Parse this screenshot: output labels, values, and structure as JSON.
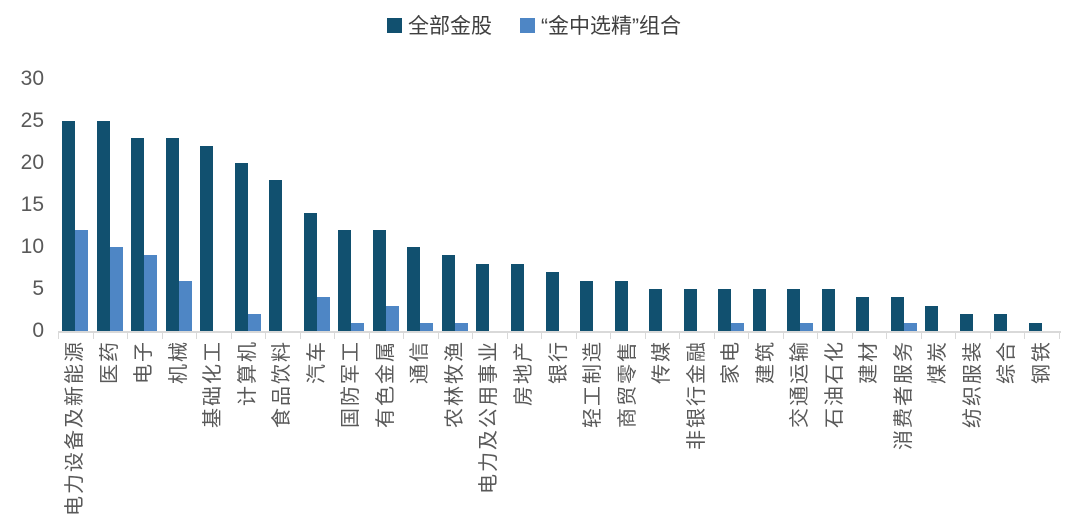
{
  "chart_data": {
    "type": "bar",
    "title": "",
    "xlabel": "",
    "ylabel": "",
    "categories": [
      "电力设备及新能源",
      "医药",
      "电子",
      "机械",
      "基础化工",
      "计算机",
      "食品饮料",
      "汽车",
      "国防军工",
      "有色金属",
      "通信",
      "农林牧渔",
      "电力及公用事业",
      "房地产",
      "银行",
      "轻工制造",
      "商贸零售",
      "传媒",
      "非银行金融",
      "家电",
      "建筑",
      "交通运输",
      "石油石化",
      "建材",
      "消费者服务",
      "煤炭",
      "纺织服装",
      "综合",
      "钢铁"
    ],
    "series": [
      {
        "name": "全部金股",
        "color": "#11506F",
        "values": [
          25,
          25,
          23,
          23,
          22,
          20,
          18,
          14,
          12,
          12,
          10,
          9,
          8,
          8,
          7,
          6,
          6,
          5,
          5,
          5,
          5,
          5,
          5,
          4,
          4,
          3,
          2,
          2,
          1
        ]
      },
      {
        "name": "“金中选精”组合",
        "color": "#4E86C5",
        "values": [
          12,
          10,
          9,
          6,
          0,
          2,
          0,
          4,
          1,
          3,
          1,
          1,
          0,
          0,
          0,
          0,
          0,
          0,
          0,
          1,
          0,
          1,
          0,
          0,
          1,
          0,
          0,
          0,
          0
        ]
      }
    ],
    "ylim": [
      0,
      30
    ],
    "yticks": [
      0,
      5,
      10,
      15,
      20,
      25,
      30
    ],
    "legend_position": "top",
    "grid": false
  },
  "colors": {
    "axis_line": "#D9D9D9",
    "tick": "#D9D9D9",
    "axis_text": "#595959",
    "legend_text": "#3F3F3F",
    "background": "#FFFFFF"
  }
}
